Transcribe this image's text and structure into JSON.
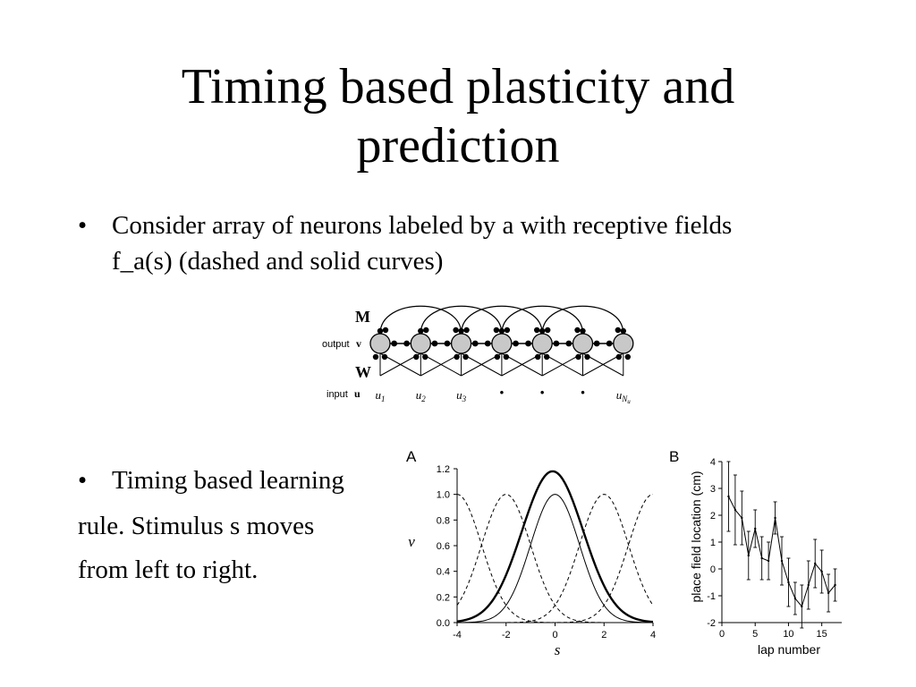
{
  "slide": {
    "title_line1": "Timing based plasticity and",
    "title_line2": "prediction",
    "bullets": [
      {
        "marker": "•",
        "text": "Consider array of neurons labeled by a with receptive fields f_a(s) (dashed and solid curves)"
      },
      {
        "marker": "•",
        "text": "Timing based learning"
      }
    ],
    "paragraphs": [
      "rule. Stimulus s moves",
      "from left to right."
    ]
  },
  "network_diagram": {
    "label_M": "M",
    "label_output": "output",
    "label_v": "v",
    "label_W": "W",
    "label_input": "input",
    "label_u": "u",
    "inputs": [
      {
        "base": "u",
        "sub": "1"
      },
      {
        "base": "u",
        "sub": "2"
      },
      {
        "base": "u",
        "sub": "3"
      },
      {
        "base": "·",
        "sub": ""
      },
      {
        "base": "·",
        "sub": ""
      },
      {
        "base": "·",
        "sub": ""
      },
      {
        "base": "u",
        "sub": "N",
        "subsub": "u"
      }
    ]
  },
  "chart_data": [
    {
      "type": "line",
      "panel_label": "A",
      "xlabel": "s",
      "ylabel": "v",
      "xlim": [
        -4,
        4
      ],
      "ylim": [
        0,
        1.2
      ],
      "xticks": [
        -4,
        -2,
        0,
        2,
        4
      ],
      "yticks": [
        "0.0",
        "0.2",
        "0.4",
        "0.6",
        "0.8",
        "1.0",
        "1.2"
      ],
      "series": [
        {
          "style": "dashed",
          "function": "gaussian",
          "center": -4,
          "sigma": 1.0,
          "amplitude": 1.0
        },
        {
          "style": "dashed",
          "function": "gaussian",
          "center": -2,
          "sigma": 1.0,
          "amplitude": 1.0
        },
        {
          "style": "dashed",
          "function": "gaussian",
          "center": 2,
          "sigma": 1.0,
          "amplitude": 1.0
        },
        {
          "style": "dashed",
          "function": "gaussian",
          "center": 4,
          "sigma": 1.0,
          "amplitude": 1.0
        },
        {
          "style": "thin",
          "function": "gaussian",
          "center": 0,
          "sigma": 1.0,
          "amplitude": 1.0
        },
        {
          "style": "thick",
          "function": "gaussian",
          "center": -0.1,
          "sigma": 1.25,
          "amplitude": 1.18
        }
      ]
    },
    {
      "type": "line",
      "panel_label": "B",
      "xlabel": "lap number",
      "ylabel": "place field  location (cm)",
      "xlim": [
        0,
        18
      ],
      "ylim": [
        -2,
        4
      ],
      "xticks": [
        0,
        5,
        10,
        15
      ],
      "yticks": [
        -2,
        -1,
        0,
        1,
        2,
        3,
        4
      ],
      "error_bars": true,
      "series": [
        {
          "x": [
            1,
            2,
            3,
            4,
            5,
            6,
            7,
            8,
            9,
            10,
            11,
            12,
            13,
            14,
            15,
            16,
            17
          ],
          "y": [
            2.7,
            2.2,
            1.9,
            0.5,
            1.5,
            0.4,
            0.3,
            1.9,
            0.3,
            -0.5,
            -1.1,
            -1.4,
            -0.6,
            0.2,
            -0.1,
            -0.9,
            -0.6
          ],
          "err": [
            1.3,
            1.3,
            1.0,
            0.9,
            0.7,
            0.8,
            0.7,
            0.6,
            0.9,
            0.9,
            0.6,
            0.8,
            0.9,
            0.9,
            0.8,
            0.7,
            0.6
          ]
        }
      ]
    }
  ]
}
